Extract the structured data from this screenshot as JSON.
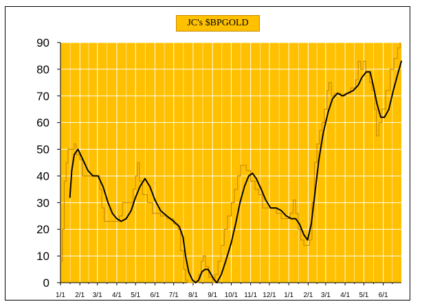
{
  "chart_data": {
    "type": "line",
    "title": "JC's $BPGOLD",
    "xlabel": "",
    "ylabel": "",
    "ylim": [
      0,
      90
    ],
    "yticks": [
      0,
      10,
      20,
      30,
      40,
      50,
      60,
      70,
      80,
      90
    ],
    "x_domain": [
      "2009-01-01",
      "2010-06-30"
    ],
    "xticks": [
      {
        "date": "2009-01-01",
        "label": "1/1"
      },
      {
        "date": "2009-02-01",
        "label": "2/1"
      },
      {
        "date": "2009-03-01",
        "label": "3/1"
      },
      {
        "date": "2009-04-01",
        "label": "4/1"
      },
      {
        "date": "2009-05-01",
        "label": "5/1"
      },
      {
        "date": "2009-06-01",
        "label": "6/1"
      },
      {
        "date": "2009-07-01",
        "label": "7/1"
      },
      {
        "date": "2009-08-01",
        "label": "8/1"
      },
      {
        "date": "2009-09-01",
        "label": "9/1"
      },
      {
        "date": "2009-10-01",
        "label": "10/1"
      },
      {
        "date": "2009-11-01",
        "label": "11/1"
      },
      {
        "date": "2009-12-01",
        "label": "12/1"
      },
      {
        "date": "2010-01-01",
        "label": "1/1"
      },
      {
        "date": "2010-02-01",
        "label": "2/1"
      },
      {
        "date": "2010-03-01",
        "label": "3/1"
      },
      {
        "date": "2010-04-01",
        "label": "4/1"
      },
      {
        "date": "2010-05-01",
        "label": "5/1"
      },
      {
        "date": "2010-06-01",
        "label": "6/1"
      }
    ],
    "grid": true,
    "legend": "none",
    "colors": {
      "plot_background": "#FFC000",
      "grid": "#FFFFFF",
      "raw_line": "#C88A00",
      "smoothed_line": "#000000",
      "title_background": "#FFC000"
    },
    "series": [
      {
        "style": "stepped-thin",
        "points": [
          [
            "2009-01-01",
            8
          ],
          [
            "2009-01-04",
            20
          ],
          [
            "2009-01-07",
            38
          ],
          [
            "2009-01-10",
            45
          ],
          [
            "2009-01-13",
            50
          ],
          [
            "2009-01-20",
            50
          ],
          [
            "2009-01-23",
            52
          ],
          [
            "2009-01-26",
            48
          ],
          [
            "2009-02-01",
            46
          ],
          [
            "2009-02-05",
            40
          ],
          [
            "2009-02-20",
            40
          ],
          [
            "2009-02-28",
            40
          ],
          [
            "2009-03-05",
            35
          ],
          [
            "2009-03-08",
            28
          ],
          [
            "2009-03-12",
            23
          ],
          [
            "2009-03-20",
            23
          ],
          [
            "2009-03-28",
            23
          ],
          [
            "2009-04-05",
            25
          ],
          [
            "2009-04-10",
            30
          ],
          [
            "2009-04-20",
            30
          ],
          [
            "2009-04-27",
            35
          ],
          [
            "2009-05-01",
            40
          ],
          [
            "2009-05-04",
            45
          ],
          [
            "2009-05-07",
            38
          ],
          [
            "2009-05-12",
            33
          ],
          [
            "2009-05-20",
            30
          ],
          [
            "2009-05-28",
            26
          ],
          [
            "2009-06-10",
            25
          ],
          [
            "2009-06-20",
            24
          ],
          [
            "2009-07-01",
            22
          ],
          [
            "2009-07-08",
            20
          ],
          [
            "2009-07-12",
            12
          ],
          [
            "2009-07-17",
            5
          ],
          [
            "2009-07-20",
            1
          ],
          [
            "2009-07-23",
            0
          ],
          [
            "2009-08-05",
            0
          ],
          [
            "2009-08-10",
            3
          ],
          [
            "2009-08-14",
            8
          ],
          [
            "2009-08-17",
            10
          ],
          [
            "2009-08-21",
            6
          ],
          [
            "2009-08-26",
            2
          ],
          [
            "2009-09-01",
            0
          ],
          [
            "2009-09-05",
            3
          ],
          [
            "2009-09-10",
            8
          ],
          [
            "2009-09-15",
            14
          ],
          [
            "2009-09-20",
            20
          ],
          [
            "2009-09-25",
            25
          ],
          [
            "2009-10-01",
            30
          ],
          [
            "2009-10-06",
            35
          ],
          [
            "2009-10-11",
            40
          ],
          [
            "2009-10-16",
            44
          ],
          [
            "2009-10-21",
            44
          ],
          [
            "2009-10-25",
            42
          ],
          [
            "2009-11-01",
            38
          ],
          [
            "2009-11-08",
            35
          ],
          [
            "2009-11-14",
            33
          ],
          [
            "2009-11-20",
            28
          ],
          [
            "2009-12-01",
            28
          ],
          [
            "2009-12-12",
            26
          ],
          [
            "2009-12-20",
            24
          ],
          [
            "2009-12-27",
            24
          ],
          [
            "2010-01-03",
            26
          ],
          [
            "2010-01-08",
            31
          ],
          [
            "2010-01-12",
            26
          ],
          [
            "2010-01-16",
            20
          ],
          [
            "2010-01-20",
            16
          ],
          [
            "2010-01-25",
            14
          ],
          [
            "2010-02-03",
            16
          ],
          [
            "2010-02-07",
            30
          ],
          [
            "2010-02-11",
            45
          ],
          [
            "2010-02-15",
            52
          ],
          [
            "2010-02-19",
            57
          ],
          [
            "2010-02-23",
            60
          ],
          [
            "2010-02-27",
            65
          ],
          [
            "2010-03-03",
            72
          ],
          [
            "2010-03-06",
            75
          ],
          [
            "2010-03-10",
            70
          ],
          [
            "2010-03-15",
            71
          ],
          [
            "2010-03-25",
            70
          ],
          [
            "2010-04-02",
            71
          ],
          [
            "2010-04-10",
            73
          ],
          [
            "2010-04-18",
            76
          ],
          [
            "2010-04-22",
            83
          ],
          [
            "2010-04-26",
            80
          ],
          [
            "2010-04-30",
            83
          ],
          [
            "2010-05-04",
            79
          ],
          [
            "2010-05-10",
            75
          ],
          [
            "2010-05-14",
            72
          ],
          [
            "2010-05-18",
            65
          ],
          [
            "2010-05-21",
            55
          ],
          [
            "2010-05-25",
            60
          ],
          [
            "2010-05-30",
            65
          ],
          [
            "2010-06-05",
            72
          ],
          [
            "2010-06-12",
            80
          ],
          [
            "2010-06-18",
            84
          ],
          [
            "2010-06-24",
            88
          ],
          [
            "2010-06-28",
            90
          ]
        ]
      },
      {
        "style": "smoothed-thick",
        "points": [
          [
            "2009-01-16",
            32
          ],
          [
            "2009-01-19",
            42
          ],
          [
            "2009-01-23",
            48
          ],
          [
            "2009-01-29",
            50
          ],
          [
            "2009-02-06",
            46
          ],
          [
            "2009-02-14",
            42
          ],
          [
            "2009-02-22",
            40
          ],
          [
            "2009-03-02",
            40
          ],
          [
            "2009-03-10",
            36
          ],
          [
            "2009-03-18",
            30
          ],
          [
            "2009-03-25",
            26
          ],
          [
            "2009-04-01",
            24
          ],
          [
            "2009-04-08",
            23
          ],
          [
            "2009-04-16",
            24
          ],
          [
            "2009-04-24",
            27
          ],
          [
            "2009-05-01",
            32
          ],
          [
            "2009-05-08",
            36
          ],
          [
            "2009-05-16",
            39
          ],
          [
            "2009-05-24",
            36
          ],
          [
            "2009-06-01",
            31
          ],
          [
            "2009-06-10",
            27
          ],
          [
            "2009-06-20",
            25
          ],
          [
            "2009-07-01",
            23
          ],
          [
            "2009-07-10",
            21
          ],
          [
            "2009-07-16",
            17
          ],
          [
            "2009-07-20",
            10
          ],
          [
            "2009-07-25",
            4
          ],
          [
            "2009-07-31",
            1
          ],
          [
            "2009-08-05",
            0
          ],
          [
            "2009-08-10",
            1
          ],
          [
            "2009-08-15",
            4
          ],
          [
            "2009-08-20",
            5
          ],
          [
            "2009-08-25",
            5
          ],
          [
            "2009-08-30",
            3
          ],
          [
            "2009-09-04",
            1
          ],
          [
            "2009-09-08",
            0
          ],
          [
            "2009-09-15",
            3
          ],
          [
            "2009-09-22",
            8
          ],
          [
            "2009-10-01",
            15
          ],
          [
            "2009-10-08",
            22
          ],
          [
            "2009-10-15",
            30
          ],
          [
            "2009-10-22",
            36
          ],
          [
            "2009-10-29",
            40
          ],
          [
            "2009-11-04",
            41
          ],
          [
            "2009-11-10",
            39
          ],
          [
            "2009-11-18",
            35
          ],
          [
            "2009-11-25",
            31
          ],
          [
            "2009-12-03",
            28
          ],
          [
            "2009-12-12",
            28
          ],
          [
            "2009-12-20",
            27
          ],
          [
            "2009-12-28",
            25
          ],
          [
            "2010-01-05",
            24
          ],
          [
            "2010-01-12",
            24
          ],
          [
            "2010-01-18",
            22
          ],
          [
            "2010-01-25",
            18
          ],
          [
            "2010-01-31",
            16
          ],
          [
            "2010-02-06",
            22
          ],
          [
            "2010-02-12",
            34
          ],
          [
            "2010-02-18",
            46
          ],
          [
            "2010-02-25",
            56
          ],
          [
            "2010-03-05",
            64
          ],
          [
            "2010-03-12",
            69
          ],
          [
            "2010-03-20",
            71
          ],
          [
            "2010-03-28",
            70
          ],
          [
            "2010-04-05",
            71
          ],
          [
            "2010-04-14",
            72
          ],
          [
            "2010-04-22",
            74
          ],
          [
            "2010-04-28",
            77
          ],
          [
            "2010-05-05",
            79
          ],
          [
            "2010-05-11",
            79
          ],
          [
            "2010-05-16",
            74
          ],
          [
            "2010-05-22",
            67
          ],
          [
            "2010-05-28",
            62
          ],
          [
            "2010-06-03",
            62
          ],
          [
            "2010-06-10",
            65
          ],
          [
            "2010-06-17",
            72
          ],
          [
            "2010-06-24",
            78
          ],
          [
            "2010-06-30",
            83
          ]
        ]
      }
    ]
  }
}
